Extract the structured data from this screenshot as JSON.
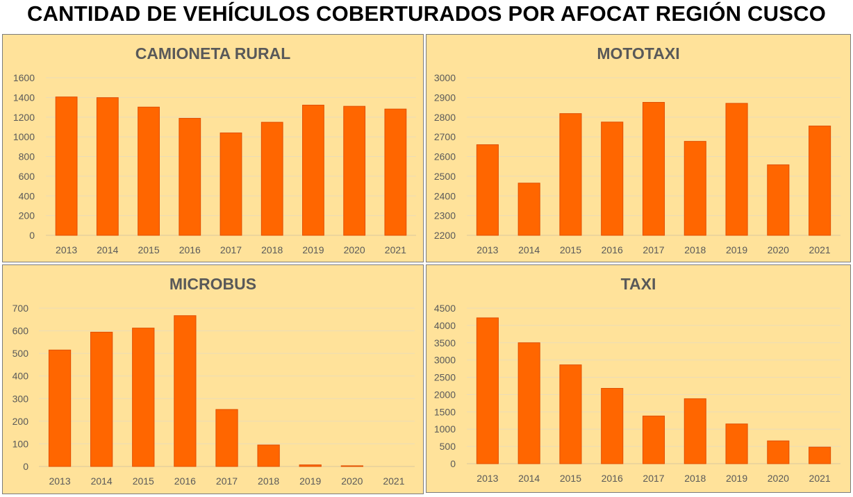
{
  "title": "CANTIDAD DE VEHÍCULOS COBERTURADOS POR AFOCAT REGIÓN CUSCO",
  "colors": {
    "panel_bg": "#FFE29A",
    "bar": "#FF6600",
    "bar_edge": "#E04E00",
    "grid": "#EBDCB6",
    "text": "#595959"
  },
  "chart_data": [
    {
      "type": "bar",
      "title": "CAMIONETA RURAL",
      "categories": [
        "2013",
        "2014",
        "2015",
        "2016",
        "2017",
        "2018",
        "2019",
        "2020",
        "2021"
      ],
      "values": [
        1405,
        1398,
        1302,
        1188,
        1040,
        1148,
        1322,
        1310,
        1282
      ],
      "ylim": [
        0,
        1600
      ],
      "ytick_step": 200,
      "grid": true
    },
    {
      "type": "bar",
      "title": "MOTOTAXI",
      "categories": [
        "2013",
        "2014",
        "2015",
        "2016",
        "2017",
        "2018",
        "2019",
        "2020",
        "2021"
      ],
      "values": [
        2660,
        2465,
        2818,
        2775,
        2875,
        2677,
        2870,
        2558,
        2755
      ],
      "ylim": [
        2200,
        3000
      ],
      "ytick_step": 100,
      "grid": true
    },
    {
      "type": "bar",
      "title": "MICROBUS",
      "categories": [
        "2013",
        "2014",
        "2015",
        "2016",
        "2017",
        "2018",
        "2019",
        "2020",
        "2021"
      ],
      "values": [
        515,
        594,
        612,
        667,
        252,
        95,
        7,
        3,
        0
      ],
      "ylim": [
        0,
        700
      ],
      "ytick_step": 100,
      "grid": true
    },
    {
      "type": "bar",
      "title": "TAXI",
      "categories": [
        "2013",
        "2014",
        "2015",
        "2016",
        "2017",
        "2018",
        "2019",
        "2020",
        "2021"
      ],
      "values": [
        4220,
        3500,
        2860,
        2180,
        1380,
        1880,
        1150,
        660,
        480
      ],
      "ylim": [
        0,
        4500
      ],
      "ytick_step": 500,
      "grid": true
    }
  ]
}
